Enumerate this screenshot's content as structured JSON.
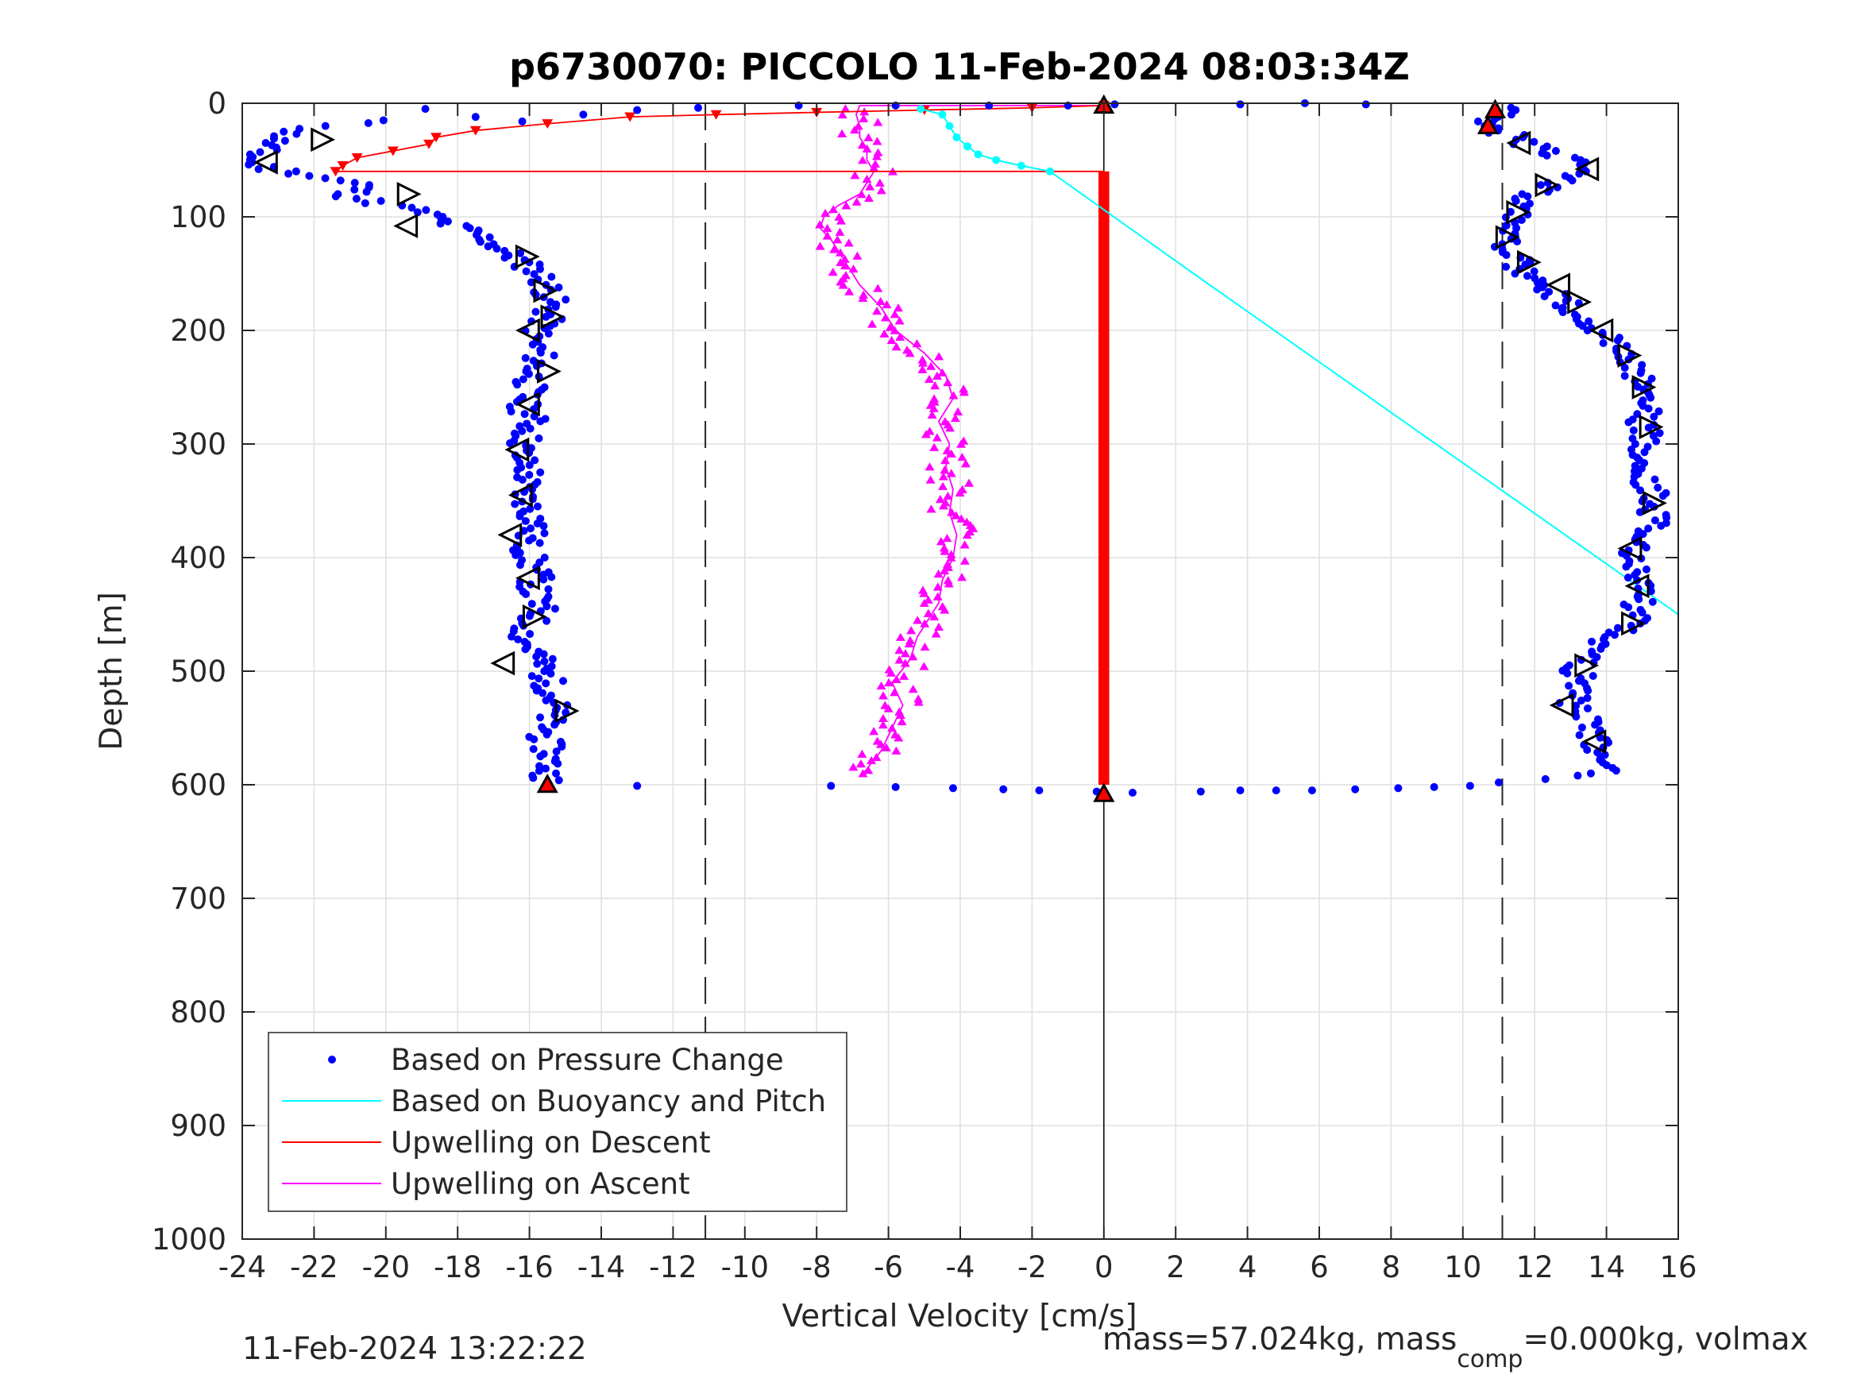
{
  "chart_data": {
    "type": "scatter",
    "title": "p6730070: PICCOLO 11-Feb-2024 08:03:34Z",
    "xlabel": "Vertical Velocity [cm/s]",
    "ylabel": "Depth [m]",
    "xlim": [
      -24,
      16
    ],
    "ylim": [
      0,
      1000
    ],
    "y_reversed": true,
    "grid": true,
    "xticks": [
      -24,
      -22,
      -20,
      -18,
      -16,
      -14,
      -12,
      -10,
      -8,
      -6,
      -4,
      -2,
      0,
      2,
      4,
      6,
      8,
      10,
      12,
      14,
      16
    ],
    "yticks": [
      0,
      100,
      200,
      300,
      400,
      500,
      600,
      700,
      800,
      900,
      1000
    ],
    "dashed_reference_lines_x": [
      -11.1,
      11.1
    ],
    "zero_line_x": 0,
    "legend_location": "bottom-left",
    "legend": [
      {
        "label": "Based on Pressure Change",
        "color": "#0000ff",
        "marker": "dot"
      },
      {
        "label": "Based on Buoyancy and Pitch",
        "color": "#00ffff",
        "marker": "line"
      },
      {
        "label": "Upwelling on Descent",
        "color": "#ff0000",
        "marker": "line"
      },
      {
        "label": "Upwelling on Ascent",
        "color": "#ff00ff",
        "marker": "line"
      }
    ],
    "series": [
      {
        "name": "Based on Pressure Change (descent)",
        "color": "#0000ff",
        "points": [
          [
            -20.2,
            15
          ],
          [
            -21.5,
            20
          ],
          [
            -22.6,
            25
          ],
          [
            -23.2,
            35
          ],
          [
            -23.6,
            45
          ],
          [
            -23.8,
            52
          ],
          [
            -23.2,
            58
          ],
          [
            -22.3,
            62
          ],
          [
            -21.3,
            68
          ],
          [
            -20.6,
            72
          ],
          [
            -21.0,
            82
          ],
          [
            -20.2,
            88
          ],
          [
            -19.4,
            92
          ],
          [
            -18.8,
            98
          ],
          [
            -18.3,
            106
          ],
          [
            -17.7,
            112
          ],
          [
            -17.2,
            120
          ],
          [
            -16.8,
            128
          ],
          [
            -16.3,
            138
          ],
          [
            -15.8,
            148
          ],
          [
            -15.5,
            160
          ],
          [
            -15.4,
            175
          ],
          [
            -15.5,
            188
          ],
          [
            -15.7,
            198
          ],
          [
            -15.9,
            210
          ],
          [
            -15.7,
            222
          ],
          [
            -15.9,
            236
          ],
          [
            -16.0,
            250
          ],
          [
            -16.2,
            265
          ],
          [
            -15.9,
            280
          ],
          [
            -16.1,
            295
          ],
          [
            -16.3,
            310
          ],
          [
            -16.0,
            325
          ],
          [
            -16.2,
            340
          ],
          [
            -16.0,
            355
          ],
          [
            -15.8,
            370
          ],
          [
            -16.1,
            385
          ],
          [
            -16.0,
            400
          ],
          [
            -15.8,
            415
          ],
          [
            -15.9,
            430
          ],
          [
            -15.7,
            445
          ],
          [
            -16.0,
            460
          ],
          [
            -16.2,
            472
          ],
          [
            -15.8,
            485
          ],
          [
            -15.6,
            500
          ],
          [
            -15.4,
            515
          ],
          [
            -15.3,
            530
          ],
          [
            -15.5,
            545
          ],
          [
            -15.6,
            560
          ],
          [
            -15.4,
            575
          ],
          [
            -15.5,
            590
          ],
          [
            -15.4,
            598
          ]
        ]
      },
      {
        "name": "Based on Pressure Change (ascent)",
        "color": "#0000ff",
        "points": [
          [
            13.9,
            590
          ],
          [
            13.8,
            578
          ],
          [
            13.8,
            565
          ],
          [
            13.5,
            552
          ],
          [
            13.3,
            540
          ],
          [
            13.1,
            528
          ],
          [
            13.3,
            515
          ],
          [
            13.2,
            502
          ],
          [
            13.3,
            490
          ],
          [
            13.7,
            478
          ],
          [
            14.2,
            468
          ],
          [
            14.7,
            458
          ],
          [
            14.9,
            446
          ],
          [
            14.8,
            432
          ],
          [
            15.0,
            420
          ],
          [
            14.8,
            408
          ],
          [
            14.7,
            396
          ],
          [
            14.9,
            384
          ],
          [
            15.2,
            372
          ],
          [
            15.3,
            360
          ],
          [
            15.4,
            348
          ],
          [
            15.1,
            336
          ],
          [
            14.9,
            324
          ],
          [
            14.8,
            312
          ],
          [
            15.0,
            300
          ],
          [
            15.1,
            288
          ],
          [
            15.0,
            276
          ],
          [
            15.2,
            264
          ],
          [
            15.1,
            252
          ],
          [
            14.9,
            240
          ],
          [
            14.7,
            228
          ],
          [
            14.4,
            216
          ],
          [
            14.1,
            204
          ],
          [
            13.7,
            196
          ],
          [
            13.3,
            186
          ],
          [
            12.9,
            176
          ],
          [
            12.5,
            166
          ],
          [
            12.1,
            156
          ],
          [
            11.7,
            146
          ],
          [
            11.4,
            136
          ],
          [
            11.2,
            124
          ],
          [
            11.3,
            110
          ],
          [
            11.5,
            98
          ],
          [
            11.8,
            86
          ],
          [
            12.2,
            76
          ],
          [
            12.8,
            66
          ],
          [
            13.4,
            58
          ],
          [
            12.8,
            48
          ],
          [
            12.1,
            40
          ],
          [
            11.6,
            32
          ],
          [
            11.0,
            24
          ],
          [
            10.7,
            18
          ],
          [
            11.0,
            8
          ],
          [
            11.5,
            2
          ]
        ]
      },
      {
        "name": "Based on Pressure Change (near surface)",
        "color": "#0000ff",
        "points": [
          [
            -18.9,
            5
          ],
          [
            -17.5,
            12
          ],
          [
            -16.2,
            16
          ],
          [
            -14.5,
            10
          ],
          [
            -13.0,
            6
          ],
          [
            -11.3,
            4
          ],
          [
            -8.5,
            2
          ],
          [
            -5.8,
            2
          ],
          [
            -3.2,
            2
          ],
          [
            -1.0,
            2
          ],
          [
            0.3,
            1
          ],
          [
            3.8,
            1
          ],
          [
            5.6,
            0
          ],
          [
            7.3,
            1
          ]
        ]
      },
      {
        "name": "Based on Pressure Change (bottom turn)",
        "color": "#0000ff",
        "points": [
          [
            -13.0,
            601
          ],
          [
            -7.6,
            601
          ],
          [
            -5.8,
            602
          ],
          [
            -4.2,
            603
          ],
          [
            -2.8,
            604
          ],
          [
            -1.8,
            605
          ],
          [
            -0.2,
            606
          ],
          [
            0.8,
            607
          ],
          [
            2.7,
            606
          ],
          [
            3.8,
            605
          ],
          [
            4.8,
            605
          ],
          [
            5.8,
            605
          ],
          [
            7.0,
            604
          ],
          [
            8.2,
            603
          ],
          [
            9.2,
            602
          ],
          [
            10.2,
            601
          ],
          [
            11.0,
            598
          ],
          [
            12.3,
            595
          ],
          [
            13.2,
            592
          ]
        ]
      },
      {
        "name": "Based on Buoyancy and Pitch",
        "color": "#00ffff",
        "points": [
          [
            -5.1,
            5
          ],
          [
            -4.5,
            10
          ],
          [
            -4.3,
            20
          ],
          [
            -4.1,
            30
          ],
          [
            -3.8,
            38
          ],
          [
            -3.5,
            45
          ],
          [
            -3.0,
            50
          ],
          [
            -2.3,
            55
          ],
          [
            -1.5,
            60
          ],
          [
            2.5,
            150
          ],
          [
            7.0,
            250
          ],
          [
            11.5,
            350
          ],
          [
            16.0,
            450
          ]
        ]
      },
      {
        "name": "Upwelling on Descent",
        "color": "#ff0000",
        "points": [
          [
            0,
            2
          ],
          [
            -2.0,
            4
          ],
          [
            -5.0,
            6
          ],
          [
            -8.0,
            8
          ],
          [
            -10.8,
            10
          ],
          [
            -13.2,
            12
          ],
          [
            -15.5,
            18
          ],
          [
            -17.5,
            24
          ],
          [
            -18.6,
            30
          ],
          [
            -18.8,
            36
          ],
          [
            -19.8,
            42
          ],
          [
            -20.8,
            48
          ],
          [
            -21.2,
            55
          ],
          [
            -21.4,
            60
          ],
          [
            -7.5,
            60
          ],
          [
            0,
            60
          ],
          [
            0,
            600
          ]
        ]
      },
      {
        "name": "Upwelling on Ascent",
        "color": "#ff00ff",
        "points": [
          [
            -6.7,
            590
          ],
          [
            -6.2,
            570
          ],
          [
            -5.9,
            550
          ],
          [
            -5.6,
            530
          ],
          [
            -5.9,
            510
          ],
          [
            -5.4,
            490
          ],
          [
            -5.2,
            470
          ],
          [
            -4.6,
            440
          ],
          [
            -4.5,
            420
          ],
          [
            -4.2,
            400
          ],
          [
            -4.1,
            380
          ],
          [
            -4.3,
            360
          ],
          [
            -4.2,
            340
          ],
          [
            -4.4,
            320
          ],
          [
            -4.3,
            300
          ],
          [
            -4.6,
            280
          ],
          [
            -4.2,
            260
          ],
          [
            -4.4,
            240
          ],
          [
            -5.0,
            220
          ],
          [
            -5.8,
            200
          ],
          [
            -6.2,
            180
          ],
          [
            -6.8,
            160
          ],
          [
            -7.2,
            140
          ],
          [
            -7.6,
            120
          ],
          [
            -7.9,
            110
          ],
          [
            -7.8,
            100
          ],
          [
            -7.4,
            90
          ],
          [
            -6.8,
            80
          ],
          [
            -6.6,
            70
          ],
          [
            -6.4,
            60
          ],
          [
            -6.6,
            50
          ],
          [
            -6.6,
            40
          ],
          [
            -6.8,
            30
          ],
          [
            -6.8,
            20
          ],
          [
            -6.9,
            10
          ],
          [
            -6.8,
            2
          ],
          [
            0,
            2
          ]
        ]
      }
    ],
    "open_triangles_left": [
      [
        -23.3,
        52
      ],
      [
        -19.4,
        108
      ],
      [
        -16.0,
        200
      ],
      [
        -16.0,
        265
      ],
      [
        -16.3,
        305
      ],
      [
        -16.2,
        345
      ],
      [
        -16.5,
        380
      ],
      [
        -16.0,
        418
      ],
      [
        -16.7,
        493
      ],
      [
        13.5,
        58
      ],
      [
        11.6,
        35
      ],
      [
        12.7,
        160
      ],
      [
        13.9,
        200
      ],
      [
        14.7,
        392
      ],
      [
        14.9,
        425
      ],
      [
        12.8,
        530
      ],
      [
        13.7,
        562
      ]
    ],
    "open_triangles_right": [
      [
        -21.8,
        32
      ],
      [
        -19.4,
        80
      ],
      [
        -16.1,
        135
      ],
      [
        -15.6,
        165
      ],
      [
        -15.4,
        188
      ],
      [
        -15.5,
        236
      ],
      [
        -15.9,
        452
      ],
      [
        -15.0,
        535
      ],
      [
        15.0,
        250
      ],
      [
        15.2,
        285
      ],
      [
        15.3,
        352
      ],
      [
        14.7,
        458
      ],
      [
        12.3,
        72
      ],
      [
        11.5,
        96
      ],
      [
        11.2,
        118
      ],
      [
        11.8,
        140
      ],
      [
        13.2,
        175
      ],
      [
        13.4,
        495
      ],
      [
        14.6,
        222
      ]
    ],
    "red_triangle_markers": [
      [
        -15.5,
        600
      ],
      [
        0,
        2
      ],
      [
        0,
        608
      ],
      [
        10.9,
        6
      ],
      [
        10.7,
        20
      ]
    ]
  },
  "footer_left": "11-Feb-2024 13:22:22",
  "footer_right": {
    "prefix": "mass=57.024kg, mass",
    "subscript": "comp",
    "suffix": "=0.000kg, volmax"
  }
}
